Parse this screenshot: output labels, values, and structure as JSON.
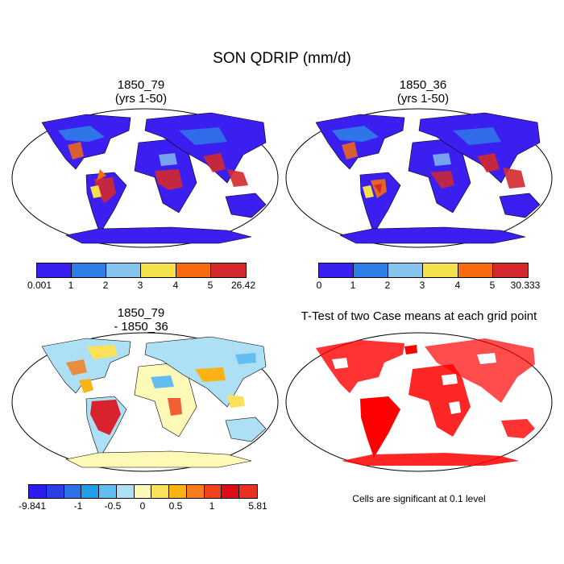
{
  "title": "SON QDRIP (mm/d)",
  "panels": [
    {
      "id": "p1",
      "title_line1": "1850_79",
      "title_line2": "(yrs 1-50)"
    },
    {
      "id": "p2",
      "title_line1": "1850_36",
      "title_line2": "(yrs 1-50)"
    },
    {
      "id": "p3",
      "title_line1": "1850_79",
      "title_line2": "- 1850_36"
    },
    {
      "id": "p4",
      "title_line1": "T-Test of two Case means at each grid point",
      "title_line2": ""
    }
  ],
  "colorbars": {
    "cb1": {
      "colors": [
        "#3a1ff0",
        "#2e7ee8",
        "#86c4ef",
        "#f4e04a",
        "#f86a10",
        "#d4282c"
      ],
      "labels": [
        "0.001",
        "1",
        "2",
        "3",
        "4",
        "5",
        "26.42"
      ]
    },
    "cb2": {
      "colors": [
        "#3a1ff0",
        "#2e7ee8",
        "#86c4ef",
        "#f4e04a",
        "#f86a10",
        "#d4282c"
      ],
      "labels": [
        "0",
        "1",
        "2",
        "3",
        "4",
        "5",
        "30.333"
      ]
    },
    "cb3": {
      "colors": [
        "#2b1df0",
        "#2a3fe8",
        "#2b72e6",
        "#1f9fe8",
        "#62bdf0",
        "#aee0f5",
        "#fff9b8",
        "#fbe15a",
        "#f9b315",
        "#f57d1d",
        "#f0431c",
        "#dd0d18",
        "#e8321f"
      ],
      "labels": [
        "-9.841",
        "-1",
        "-0.5",
        "0",
        "0.5",
        "1",
        "5.81"
      ]
    }
  },
  "significance_note": "Cells are significant at 0.1 level",
  "map_colors": {
    "p1_base": "#3a1ff0",
    "p2_base": "#3a1ff0",
    "p3_base": "#aee0f5",
    "p4_mark": "#ff0000"
  }
}
